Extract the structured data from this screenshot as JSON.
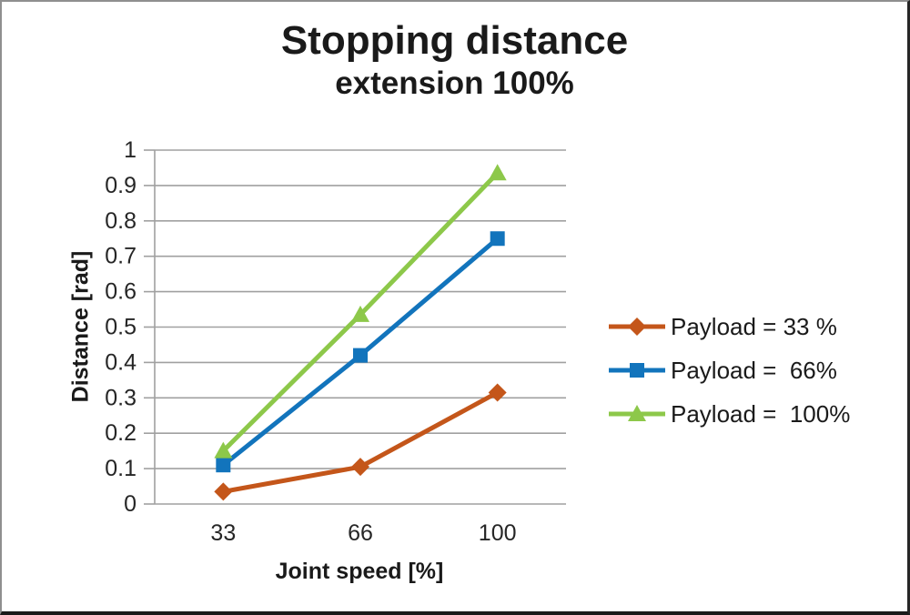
{
  "frame": {
    "background": "#ffffff",
    "border_gray": "#8f8f8f",
    "border_dark": "#1a1a1a"
  },
  "chart_data": {
    "type": "line",
    "title": "Stopping distance",
    "subtitle": "extension 100%",
    "xlabel": "Joint speed [%]",
    "ylabel": "Distance [rad]",
    "categories": [
      "33",
      "66",
      "100"
    ],
    "y_tick_labels": [
      "0",
      "0.1",
      "0.2",
      "0.3",
      "0.4",
      "0.5",
      "0.6",
      "0.7",
      "0.8",
      "0.9",
      "1"
    ],
    "ylim": [
      0,
      1
    ],
    "grid": "horizontal",
    "gridline_color": "#a0a0a0",
    "axis_color": "#a0a0a0",
    "tick_label_color": "#262626",
    "legend_position": "right",
    "series": [
      {
        "name": "Payload = 33 %",
        "marker": "diamond",
        "color": "#C4561A",
        "values": [
          0.035,
          0.105,
          0.315
        ]
      },
      {
        "name": "Payload =  66%",
        "marker": "square",
        "color": "#1274BC",
        "values": [
          0.11,
          0.42,
          0.75
        ]
      },
      {
        "name": "Payload =  100%",
        "marker": "triangle",
        "color": "#8DC84A",
        "values": [
          0.15,
          0.535,
          0.935
        ]
      }
    ]
  }
}
